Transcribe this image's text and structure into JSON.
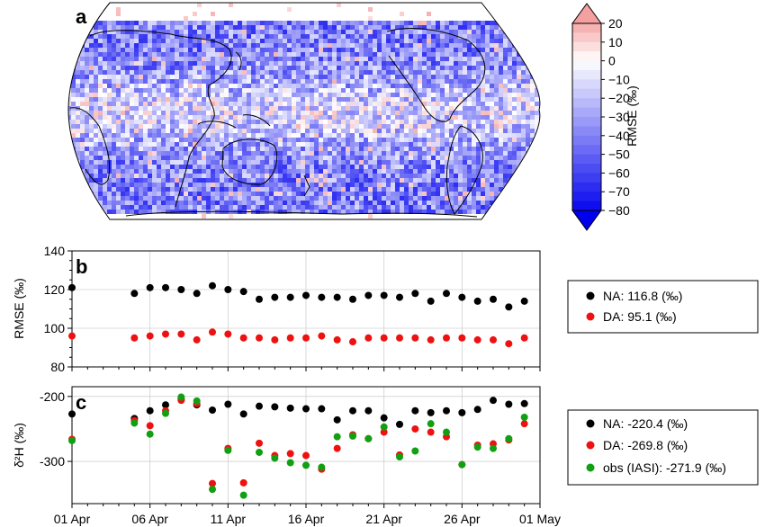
{
  "panels": {
    "a": {
      "letter": "a"
    },
    "b": {
      "letter": "b"
    },
    "c": {
      "letter": "c"
    }
  },
  "chart_data": [
    {
      "panel": "a",
      "type": "heatmap",
      "projection": "Robinson (global map, Pacific-centered)",
      "colorbar": {
        "label": "RMSE (‰)",
        "ticks": [
          20,
          10,
          0,
          -10,
          -20,
          -30,
          -40,
          -50,
          -60,
          -70,
          -80
        ],
        "tick_labels": [
          "20",
          "10",
          "0",
          "−10",
          "−20",
          "−30",
          "−40",
          "−50",
          "−60",
          "−70",
          "−80"
        ],
        "range": [
          -85,
          25
        ],
        "extend": "both",
        "colors": {
          "high": "#f4a0a0",
          "mid": "#ffffff",
          "low": "#0000ee"
        }
      }
    },
    {
      "panel": "b",
      "type": "scatter",
      "x_dates": [
        "2018-04-01",
        "2018-04-05",
        "2018-04-06",
        "2018-04-07",
        "2018-04-08",
        "2018-04-09",
        "2018-04-10",
        "2018-04-11",
        "2018-04-12",
        "2018-04-13",
        "2018-04-14",
        "2018-04-15",
        "2018-04-16",
        "2018-04-17",
        "2018-04-18",
        "2018-04-19",
        "2018-04-20",
        "2018-04-21",
        "2018-04-22",
        "2018-04-23",
        "2018-04-24",
        "2018-04-25",
        "2018-04-26",
        "2018-04-27",
        "2018-04-28",
        "2018-04-29",
        "2018-04-30"
      ],
      "series": [
        {
          "legend_text": "NA: 116.8 (‰)",
          "color": "#000000",
          "values": [
            121,
            118,
            121,
            121,
            120,
            118,
            122,
            120,
            119,
            115,
            116,
            116,
            117,
            116,
            116,
            115,
            117,
            117,
            116,
            118,
            114,
            118,
            116,
            114,
            115,
            111,
            114
          ]
        },
        {
          "legend_text": "DA: 95.1 (‰)",
          "color": "#ee1111",
          "values": [
            96,
            95,
            96,
            97,
            97,
            94,
            98,
            97,
            95,
            95,
            94,
            95,
            95,
            96,
            94,
            93,
            95,
            95,
            95,
            95,
            94,
            95,
            95,
            94,
            94,
            92,
            95
          ]
        }
      ],
      "ylabel": "RMSE (‰)",
      "ylim": [
        80,
        140
      ],
      "yticks": [
        80,
        100,
        120,
        140
      ],
      "grid": true,
      "legend_placement": "right of plot"
    },
    {
      "panel": "c",
      "type": "scatter",
      "x_dates": [
        "2018-04-01",
        "2018-04-05",
        "2018-04-06",
        "2018-04-07",
        "2018-04-08",
        "2018-04-09",
        "2018-04-10",
        "2018-04-11",
        "2018-04-12",
        "2018-04-13",
        "2018-04-14",
        "2018-04-15",
        "2018-04-16",
        "2018-04-17",
        "2018-04-18",
        "2018-04-19",
        "2018-04-20",
        "2018-04-21",
        "2018-04-22",
        "2018-04-23",
        "2018-04-24",
        "2018-04-25",
        "2018-04-26",
        "2018-04-27",
        "2018-04-28",
        "2018-04-29",
        "2018-04-30"
      ],
      "series": [
        {
          "legend_text": "NA: -220.4 (‰)",
          "color": "#000000",
          "values": [
            -227,
            -234,
            -222,
            -213,
            -204,
            -213,
            -221,
            -212,
            -227,
            -215,
            -216,
            -218,
            -219,
            -219,
            -236,
            -222,
            -222,
            -233,
            -243,
            -222,
            -225,
            -222,
            -225,
            -220,
            -206,
            -212,
            -211
          ]
        },
        {
          "legend_text": "DA: -269.8 (‰)",
          "color": "#ee1111",
          "values": [
            -266,
            -237,
            -245,
            -222,
            -206,
            -211,
            -334,
            -280,
            -333,
            -272,
            -291,
            -288,
            -291,
            -312,
            -280,
            -259,
            -265,
            -255,
            -290,
            -250,
            -255,
            -262,
            -305,
            -275,
            -273,
            -267,
            -242
          ]
        },
        {
          "legend_text": "obs (IASI): -271.9 (‰)",
          "color": "#11a011",
          "values": [
            -268,
            -241,
            -258,
            -226,
            -201,
            -207,
            -343,
            -283,
            -352,
            -286,
            -295,
            -302,
            -306,
            -309,
            -262,
            -261,
            -265,
            -247,
            -293,
            -284,
            -242,
            -255,
            -305,
            -278,
            -280,
            -265,
            -232
          ]
        }
      ],
      "ylabel": "δ²H (‰)",
      "ylim": [
        -365,
        -185
      ],
      "yticks": [
        -300,
        -200
      ],
      "grid": true,
      "legend_placement": "right of plot"
    }
  ],
  "shared_xaxis": {
    "range": [
      "2018-04-01",
      "2018-05-01"
    ],
    "tick_labels": [
      "01 Apr",
      "06 Apr",
      "11 Apr",
      "16 Apr",
      "21 Apr",
      "26 Apr",
      "01 May"
    ]
  }
}
